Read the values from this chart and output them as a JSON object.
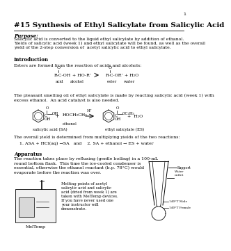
{
  "page_number": "1",
  "title": "#15 Synthesis of Ethyl Salicylate from Salicylic Acid",
  "background_color": "#ffffff",
  "text_color": "#000000",
  "purpose_label": "Purpose: ",
  "purpose_text": "Salicylic acid is converted to the liquid ethyl salicylate by addition of ethanol.\nYields of salicylic acid (week 1) and ethyl salicylate will be found, as well as the overall\nyield of the 2-step conversion of  acetyl salicylic acid to ethyl salicylate.",
  "intro_label": "Introduction",
  "intro_text": "Esters are formed from the reaction of acids and alcohols:",
  "middle_text": "The pleasant smelling oil of ethyl salicylate is made by reacting salicylic acid (week 1) with\nexcess ethanol.  An acid catalyst is also needed.",
  "overall_text": "The overall yield is determined from multiplying yields of the two reactions:",
  "overall_eq": "1. ASA + HCl(aq) →SA   and    2. SA + ethanol → ES + water",
  "apparatus_label": "Apparatus",
  "apparatus_text": "The reaction takes place by refluxing (gentle boiling) in a 100-mL\nround bottom flask.  This time the ice-cooled condenser is\nessential, otherwise the ethanol reactant (b.p. 78°C) would\nevaporate before the reaction was over.",
  "meltemp_text": "Melting points of acetyl\nsalicylic acid and salicylic\nacid (dried from week 1) are\ntaken with MelTemp devices.\nIf you have never used one\nyour instructor will\ndemonstrate.",
  "meltemp_label": "MelTemp",
  "sa_label": "salicylic acid (SA)",
  "ethanol_label": "ethanol",
  "es_label": "ethyl salicylate (ES)",
  "support_label": "Support",
  "water_outlet_label": "Water\noutlet",
  "male_label": "140°T Male",
  "female_label": "140°T Female"
}
